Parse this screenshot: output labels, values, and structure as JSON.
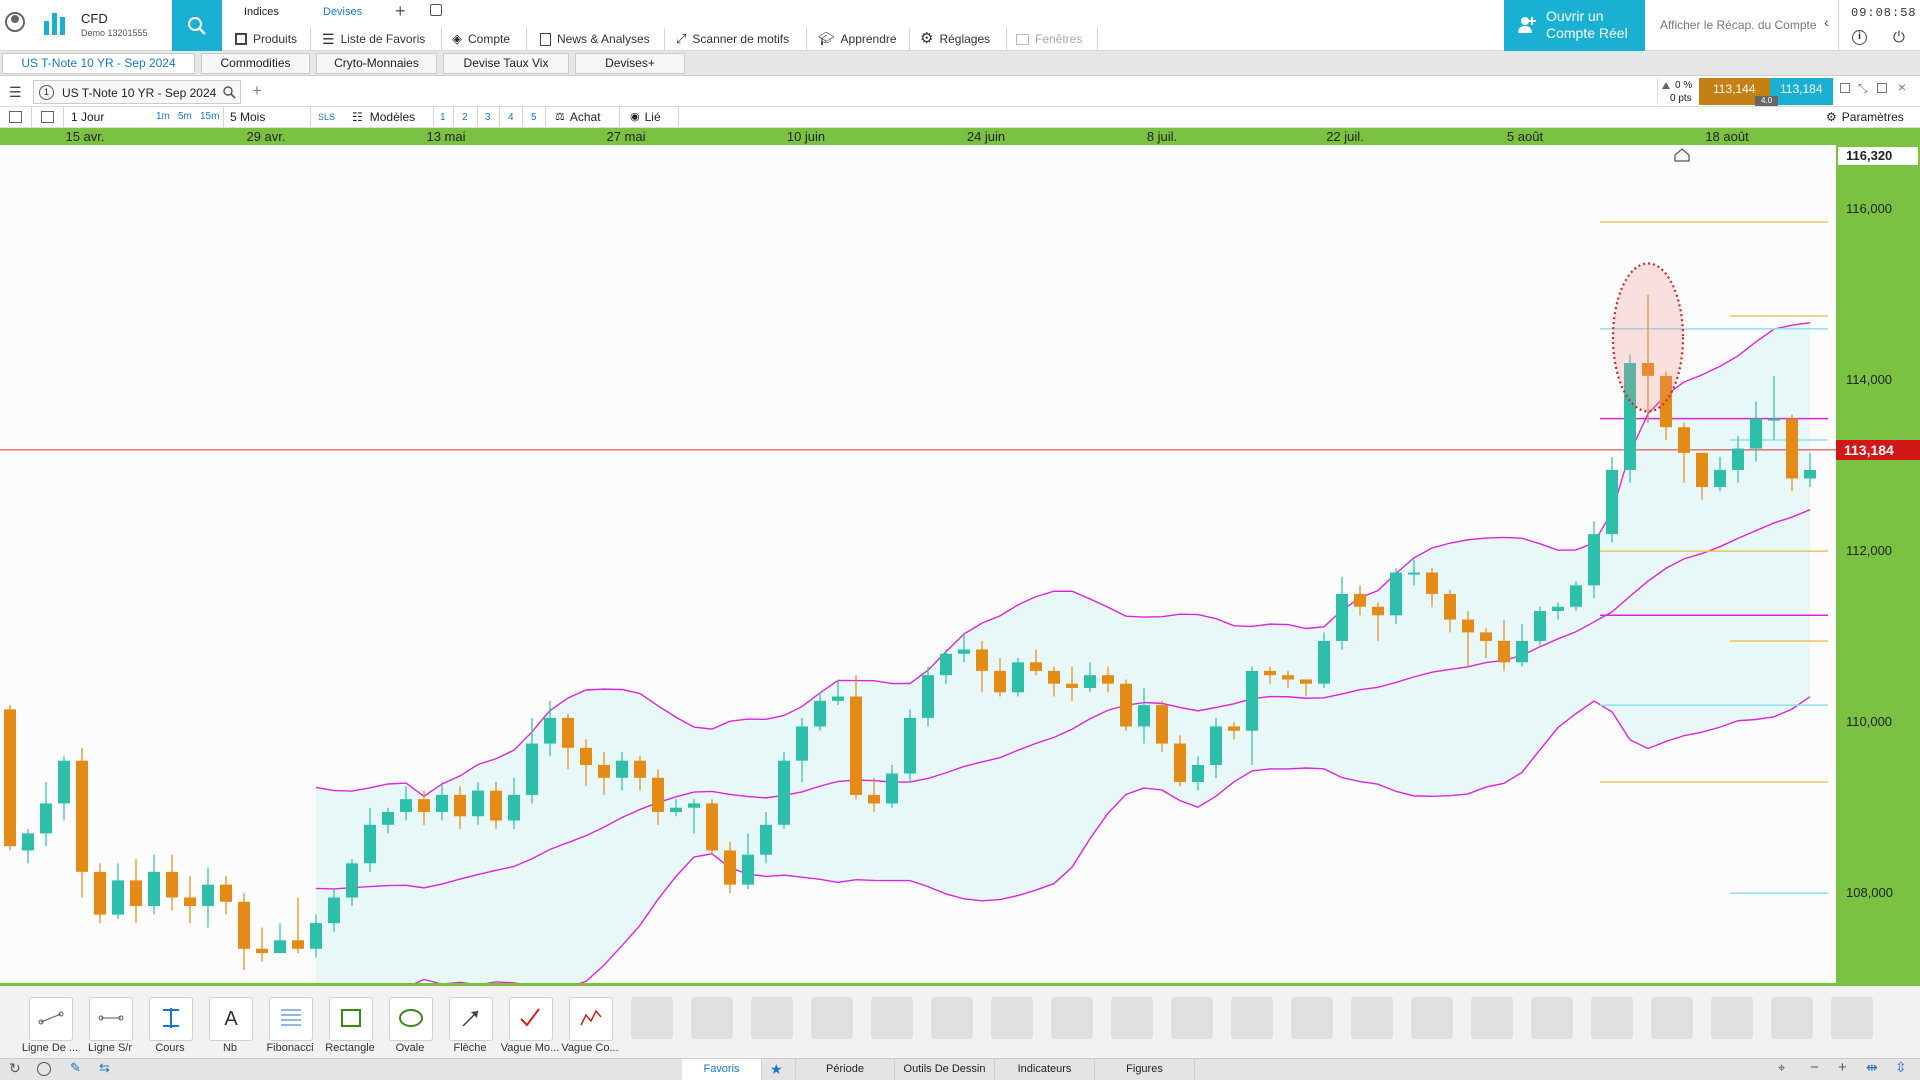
{
  "app": {
    "name": "CFD",
    "account": "Demo 13201555",
    "time": "09:08:58"
  },
  "header": {
    "top_links": [
      "Indices",
      "Devises"
    ],
    "menu": [
      "Produits",
      "Liste de Favoris",
      "Compte",
      "News & Analyses",
      "Scanner de motifs",
      "Apprendre",
      "Réglages",
      "Fenêtres"
    ],
    "open_account": "Ouvrir un Compte Réel",
    "recap": "Afficher le Récap. du Compte"
  },
  "tabs": [
    "US T-Note 10 YR - Sep 2024",
    "Commodities",
    "Cryto-Monnaies",
    "Devise Taux Vix",
    "Devises+"
  ],
  "chart_header": {
    "instrument": "US T-Note 10 YR - Sep 2024",
    "change_pct": "0 %",
    "change_pts": "0 pts",
    "sell": "113,144",
    "buy": "113,184",
    "spread": "4.0"
  },
  "toolbar": {
    "period": "1 Jour",
    "intervals": [
      "1m",
      "5m",
      "15m"
    ],
    "range": "5 Mois",
    "sls": "SLS",
    "models": "Modèles",
    "nums": [
      "1",
      "2",
      "3",
      "4",
      "5"
    ],
    "buy": "Achat",
    "linked": "Lié",
    "params": "Paramètres"
  },
  "chart_data": {
    "type": "candlestick",
    "x_labels": [
      "15 avr.",
      "29 avr.",
      "13 mai",
      "27 mai",
      "10 juin",
      "24 juin",
      "8 juil.",
      "22 juil.",
      "5 août",
      "18 août"
    ],
    "y_ticks": [
      "116,000",
      "114,000",
      "112,000",
      "110,000",
      "108,000"
    ],
    "y_range": [
      106.95,
      116.75
    ],
    "current_price": "113,184",
    "top_price": "116,320",
    "candles": [
      [
        110.15,
        108.55,
        110.2,
        108.5
      ],
      [
        108.5,
        108.7,
        108.75,
        108.35
      ],
      [
        108.7,
        109.05,
        109.3,
        108.55
      ],
      [
        109.05,
        109.55,
        109.6,
        108.85
      ],
      [
        109.55,
        108.25,
        109.7,
        107.95
      ],
      [
        108.25,
        107.75,
        108.35,
        107.65
      ],
      [
        107.75,
        108.15,
        108.35,
        107.7
      ],
      [
        108.15,
        107.85,
        108.4,
        107.65
      ],
      [
        107.85,
        108.25,
        108.45,
        107.75
      ],
      [
        108.25,
        107.95,
        108.45,
        107.8
      ],
      [
        107.95,
        107.85,
        108.2,
        107.65
      ],
      [
        107.85,
        108.1,
        108.3,
        107.6
      ],
      [
        108.1,
        107.9,
        108.2,
        107.75
      ],
      [
        107.9,
        107.35,
        108.0,
        107.1
      ],
      [
        107.35,
        107.3,
        107.6,
        107.2
      ],
      [
        107.3,
        107.45,
        107.65,
        107.3
      ],
      [
        107.45,
        107.35,
        107.95,
        107.3
      ],
      [
        107.35,
        107.65,
        107.75,
        107.25
      ],
      [
        107.65,
        107.95,
        108.05,
        107.55
      ],
      [
        107.95,
        108.35,
        108.4,
        107.85
      ],
      [
        108.35,
        108.8,
        109.0,
        108.25
      ],
      [
        108.8,
        108.95,
        109.0,
        108.7
      ],
      [
        108.95,
        109.1,
        109.25,
        108.85
      ],
      [
        109.1,
        108.95,
        109.2,
        108.8
      ],
      [
        108.95,
        109.15,
        109.3,
        108.85
      ],
      [
        109.15,
        108.9,
        109.25,
        108.75
      ],
      [
        108.9,
        109.2,
        109.3,
        108.8
      ],
      [
        109.2,
        108.85,
        109.3,
        108.75
      ],
      [
        108.85,
        109.15,
        109.35,
        108.75
      ],
      [
        109.15,
        109.75,
        110.05,
        109.05
      ],
      [
        109.75,
        110.05,
        110.25,
        109.6
      ],
      [
        110.05,
        109.7,
        110.1,
        109.45
      ],
      [
        109.7,
        109.5,
        109.8,
        109.25
      ],
      [
        109.5,
        109.35,
        109.65,
        109.15
      ],
      [
        109.35,
        109.55,
        109.65,
        109.2
      ],
      [
        109.55,
        109.35,
        109.6,
        109.2
      ],
      [
        109.35,
        108.95,
        109.45,
        108.8
      ],
      [
        108.95,
        109.0,
        109.1,
        108.9
      ],
      [
        109.0,
        109.05,
        109.1,
        108.7
      ],
      [
        109.05,
        108.5,
        109.1,
        108.45
      ],
      [
        108.5,
        108.1,
        108.6,
        108.0
      ],
      [
        108.1,
        108.45,
        108.7,
        108.05
      ],
      [
        108.45,
        108.8,
        108.95,
        108.35
      ],
      [
        108.8,
        109.55,
        109.65,
        108.75
      ],
      [
        109.55,
        109.95,
        110.05,
        109.3
      ],
      [
        109.95,
        110.25,
        110.35,
        109.9
      ],
      [
        110.25,
        110.3,
        110.5,
        110.2
      ],
      [
        110.3,
        109.15,
        110.55,
        109.1
      ],
      [
        109.15,
        109.05,
        109.35,
        108.95
      ],
      [
        109.05,
        109.4,
        109.5,
        109.0
      ],
      [
        109.4,
        110.05,
        110.15,
        109.3
      ],
      [
        110.05,
        110.55,
        110.65,
        109.95
      ],
      [
        110.55,
        110.8,
        110.85,
        110.45
      ],
      [
        110.8,
        110.85,
        111.05,
        110.7
      ],
      [
        110.85,
        110.6,
        110.95,
        110.35
      ],
      [
        110.6,
        110.35,
        110.75,
        110.3
      ],
      [
        110.35,
        110.7,
        110.75,
        110.3
      ],
      [
        110.7,
        110.6,
        110.85,
        110.55
      ],
      [
        110.6,
        110.45,
        110.65,
        110.3
      ],
      [
        110.45,
        110.4,
        110.65,
        110.25
      ],
      [
        110.4,
        110.55,
        110.7,
        110.35
      ],
      [
        110.55,
        110.45,
        110.65,
        110.35
      ],
      [
        110.45,
        109.95,
        110.5,
        109.9
      ],
      [
        109.95,
        110.2,
        110.4,
        109.75
      ],
      [
        110.2,
        109.75,
        110.25,
        109.65
      ],
      [
        109.75,
        109.3,
        109.85,
        109.25
      ],
      [
        109.3,
        109.5,
        109.6,
        109.2
      ],
      [
        109.5,
        109.95,
        110.05,
        109.35
      ],
      [
        109.95,
        109.9,
        110.0,
        109.8
      ],
      [
        109.9,
        110.6,
        110.65,
        109.5
      ],
      [
        110.6,
        110.55,
        110.65,
        110.45
      ],
      [
        110.55,
        110.5,
        110.6,
        110.4
      ],
      [
        110.5,
        110.45,
        110.5,
        110.3
      ],
      [
        110.45,
        110.95,
        111.05,
        110.4
      ],
      [
        110.95,
        111.5,
        111.7,
        110.85
      ],
      [
        111.5,
        111.35,
        111.6,
        111.25
      ],
      [
        111.35,
        111.25,
        111.4,
        110.95
      ],
      [
        111.25,
        111.75,
        111.8,
        111.15
      ],
      [
        111.75,
        111.75,
        111.9,
        111.6
      ],
      [
        111.75,
        111.5,
        111.8,
        111.35
      ],
      [
        111.5,
        111.2,
        111.55,
        111.05
      ],
      [
        111.2,
        111.05,
        111.3,
        110.65
      ],
      [
        111.05,
        110.95,
        111.1,
        110.75
      ],
      [
        110.95,
        110.7,
        111.2,
        110.6
      ],
      [
        110.7,
        110.95,
        111.15,
        110.65
      ],
      [
        110.95,
        111.3,
        111.35,
        110.9
      ],
      [
        111.3,
        111.35,
        111.4,
        111.2
      ],
      [
        111.35,
        111.6,
        111.65,
        111.3
      ],
      [
        111.6,
        112.2,
        112.35,
        111.45
      ],
      [
        112.2,
        112.95,
        113.1,
        112.1
      ],
      [
        112.95,
        114.2,
        114.3,
        112.8
      ],
      [
        114.2,
        114.05,
        115.0,
        113.5
      ],
      [
        114.05,
        113.45,
        114.1,
        113.3
      ],
      [
        113.45,
        113.15,
        113.5,
        112.8
      ],
      [
        113.15,
        112.75,
        113.15,
        112.6
      ],
      [
        112.75,
        112.95,
        113.1,
        112.7
      ],
      [
        112.95,
        113.2,
        113.35,
        112.8
      ],
      [
        113.2,
        113.55,
        113.75,
        113.05
      ],
      [
        113.55,
        113.55,
        114.05,
        113.3
      ],
      [
        113.55,
        112.85,
        113.6,
        112.7
      ],
      [
        112.85,
        112.95,
        113.15,
        112.75
      ]
    ]
  },
  "draw_tools": [
    "Ligne De ...",
    "Ligne S/r",
    "Cours",
    "Nb",
    "Fibonacci",
    "Rectangle",
    "Ovale",
    "Flèche",
    "Vague Mo...",
    "Vague Co..."
  ],
  "bottom_tabs": [
    "Favoris",
    "Période",
    "Outils De Dessin",
    "Indicateurs",
    "Figures"
  ],
  "colors": {
    "bull": "#2ebfaa",
    "bear": "#e38b16",
    "accent": "#1ab0d4",
    "axis": "#7cc242",
    "band": "#e022e0",
    "price_line": "#e03030"
  }
}
